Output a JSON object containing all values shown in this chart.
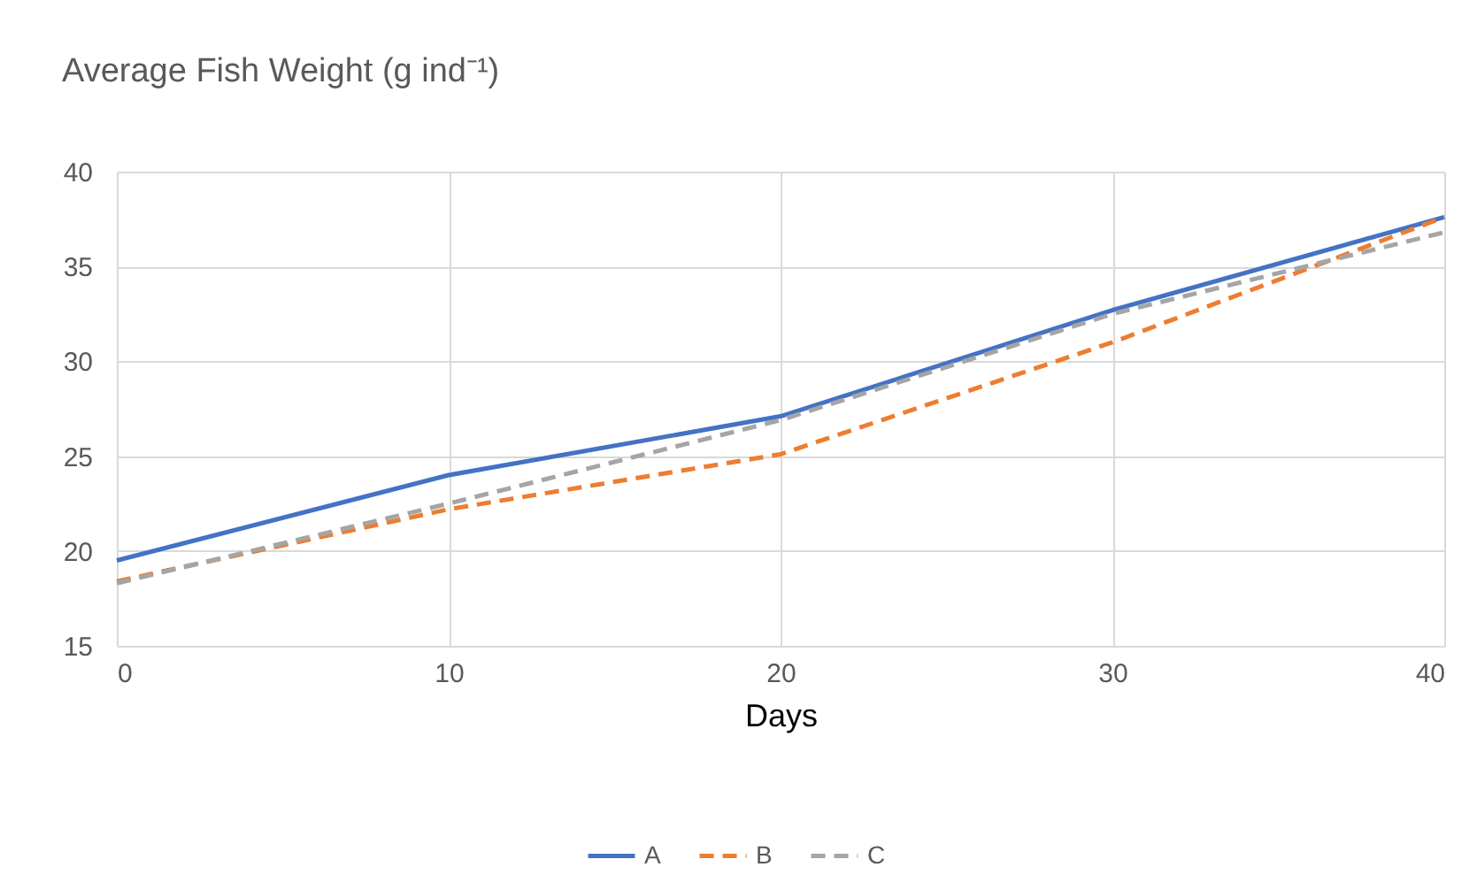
{
  "chart_data": {
    "type": "line",
    "title": "Average Fish Weight (g ind⁻¹)",
    "xlabel": "Days",
    "x": [
      0,
      10,
      20,
      30,
      40
    ],
    "series": [
      {
        "name": "A",
        "color": "#4472c4",
        "line_style": "solid",
        "values": [
          19.5,
          24.0,
          27.1,
          32.7,
          37.6
        ]
      },
      {
        "name": "B",
        "color": "#ed7d31",
        "line_style": "dashed",
        "values": [
          18.4,
          22.2,
          25.1,
          31.0,
          37.6
        ]
      },
      {
        "name": "C",
        "color": "#a5a5a5",
        "line_style": "dashed",
        "values": [
          18.3,
          22.5,
          26.9,
          32.5,
          36.8
        ]
      }
    ],
    "xlim": [
      0,
      40
    ],
    "xticks": [
      0,
      10,
      20,
      30,
      40
    ],
    "ylim": [
      15,
      40
    ],
    "yticks": [
      15,
      20,
      25,
      30,
      35,
      40
    ],
    "grid": true,
    "legend": "bottom",
    "marker": "none"
  }
}
